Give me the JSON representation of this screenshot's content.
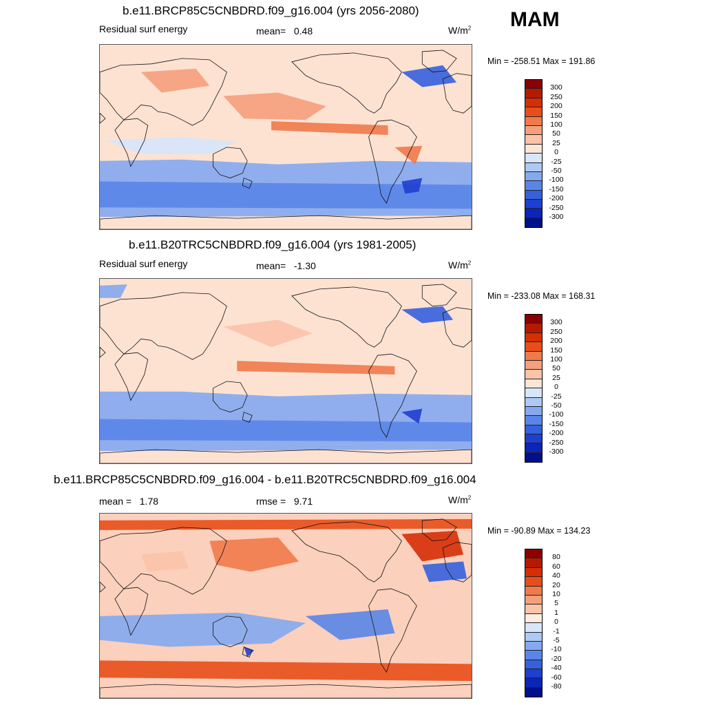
{
  "season": "MAM",
  "chart_data": [
    {
      "type": "heatmap",
      "title": "b.e11.BRCP85C5CNBDRD.f09_g16.004 (yrs 2056-2080)",
      "left_label": "Residual surf energy",
      "stat_label": "mean=",
      "stat_value": "0.48",
      "units": "W/m",
      "units_exp": "2",
      "min_max": "Min = -258.51 Max = 191.86",
      "colorbar_ticks": [
        "300",
        "250",
        "200",
        "150",
        "100",
        "50",
        "25",
        "0",
        "-25",
        "-50",
        "-100",
        "-150",
        "-200",
        "-250",
        "-300"
      ],
      "colorbar_colors": [
        "#8b0000",
        "#b51a00",
        "#d62e05",
        "#e84e1a",
        "#f07a4a",
        "#f5a07c",
        "#fbc3a8",
        "#fde5d6",
        "#d6e6fb",
        "#adc9f5",
        "#84a9ef",
        "#5a85e8",
        "#3561dd",
        "#1f3fd0",
        "#0b25b8",
        "#00108a"
      ]
    },
    {
      "type": "heatmap",
      "title": "b.e11.B20TRC5CNBDRD.f09_g16.004 (yrs 1981-2005)",
      "left_label": "Residual surf energy",
      "stat_label": "mean=",
      "stat_value": "-1.30",
      "units": "W/m",
      "units_exp": "2",
      "min_max": "Min = -233.08 Max = 168.31",
      "colorbar_ticks": [
        "300",
        "250",
        "200",
        "150",
        "100",
        "50",
        "25",
        "0",
        "-25",
        "-50",
        "-100",
        "-150",
        "-200",
        "-250",
        "-300"
      ],
      "colorbar_colors": [
        "#8b0000",
        "#b51a00",
        "#d62e05",
        "#e84e1a",
        "#f07a4a",
        "#f5a07c",
        "#fbc3a8",
        "#fde5d6",
        "#d6e6fb",
        "#adc9f5",
        "#84a9ef",
        "#5a85e8",
        "#3561dd",
        "#1f3fd0",
        "#0b25b8",
        "#00108a"
      ]
    },
    {
      "type": "heatmap",
      "title": "b.e11.BRCP85C5CNBDRD.f09_g16.004 - b.e11.B20TRC5CNBDRD.f09_g16.004",
      "left_label": "mean =",
      "left_value": "1.78",
      "stat_label": "rmse =",
      "stat_value": "9.71",
      "units": "W/m",
      "units_exp": "2",
      "min_max": "Min = -90.89 Max = 134.23",
      "colorbar_ticks": [
        "80",
        "60",
        "40",
        "20",
        "10",
        "5",
        "1",
        "0",
        "-1",
        "-5",
        "-10",
        "-20",
        "-40",
        "-60",
        "-80"
      ],
      "colorbar_colors": [
        "#8b0000",
        "#b51a00",
        "#d62e05",
        "#e84e1a",
        "#f07a4a",
        "#f5a07c",
        "#fbc3a8",
        "#fdece2",
        "#d6e6fb",
        "#adc9f5",
        "#84a9ef",
        "#5a85e8",
        "#3561dd",
        "#1f3fd0",
        "#0b25b8",
        "#00108a"
      ]
    }
  ]
}
